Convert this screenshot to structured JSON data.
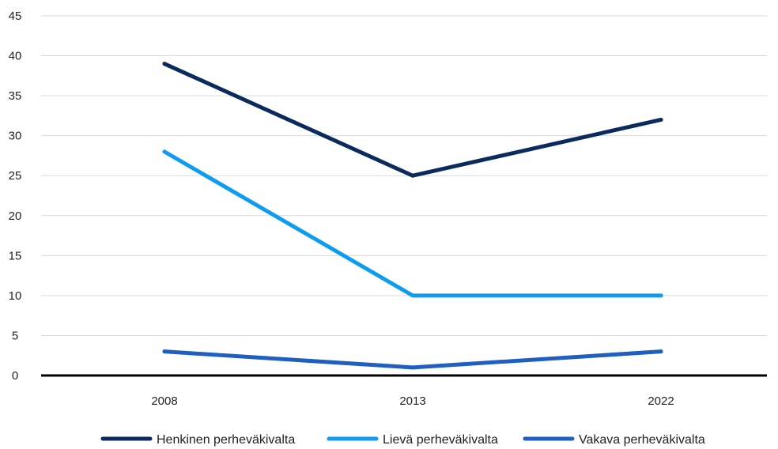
{
  "chart_data": {
    "type": "line",
    "categories": [
      "2008",
      "2013",
      "2022"
    ],
    "series": [
      {
        "name": "Henkinen perheväkivalta",
        "values": [
          39,
          25,
          32
        ],
        "color": "#0b2a5e"
      },
      {
        "name": "Lievä perheväkivalta",
        "values": [
          28,
          10,
          10
        ],
        "color": "#0e9cef"
      },
      {
        "name": "Vakava perheväkivalta",
        "values": [
          3,
          1,
          3
        ],
        "color": "#1f5fbf"
      }
    ],
    "y_ticks": [
      "0",
      "5",
      "10",
      "15",
      "20",
      "25",
      "30",
      "35",
      "40",
      "45"
    ],
    "ylim": [
      0,
      45
    ],
    "grid": true,
    "legend_position": "bottom",
    "title": "",
    "xlabel": "",
    "ylabel": ""
  }
}
